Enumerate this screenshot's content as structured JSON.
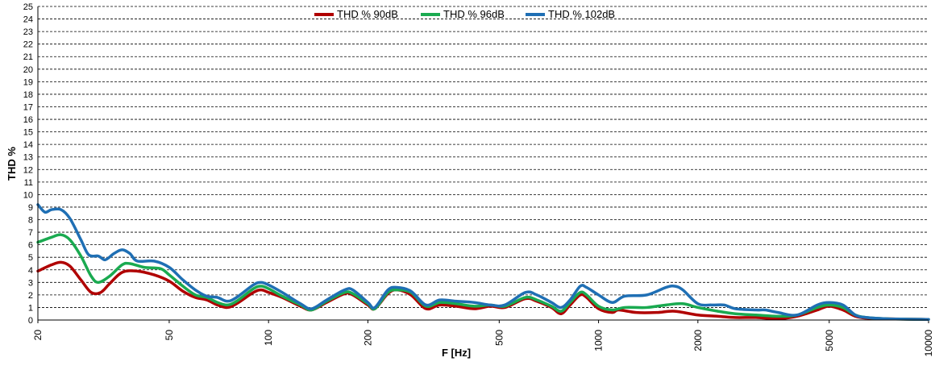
{
  "chart_data": {
    "type": "line",
    "title": "",
    "xlabel": "F [Hz]",
    "ylabel": "THD %",
    "x_scale": "log",
    "xlim": [
      20,
      10000
    ],
    "ylim": [
      0,
      25
    ],
    "y_ticks": [
      0,
      1,
      2,
      3,
      4,
      5,
      6,
      7,
      8,
      9,
      10,
      11,
      12,
      13,
      14,
      15,
      16,
      17,
      18,
      19,
      20,
      21,
      22,
      23,
      24,
      25
    ],
    "x_ticks": [
      20,
      50,
      100,
      200,
      500,
      1000,
      2000,
      5000,
      10000
    ],
    "x_tick_labels": [
      "20",
      "50",
      "100",
      "200",
      "500",
      "1000",
      "2000",
      "5000",
      "10000"
    ],
    "grid": "horizontal dashed",
    "legend_position": "top-center",
    "series": [
      {
        "name": "THD % 90dB",
        "color": "#b00000",
        "points": [
          [
            20,
            3.9
          ],
          [
            22,
            4.4
          ],
          [
            23.5,
            4.6
          ],
          [
            25,
            4.3
          ],
          [
            27,
            3.2
          ],
          [
            29,
            2.2
          ],
          [
            31,
            2.2
          ],
          [
            33,
            2.9
          ],
          [
            36,
            3.8
          ],
          [
            40,
            3.9
          ],
          [
            45,
            3.6
          ],
          [
            50,
            3.1
          ],
          [
            55,
            2.3
          ],
          [
            60,
            1.8
          ],
          [
            65,
            1.6
          ],
          [
            70,
            1.2
          ],
          [
            75,
            1.0
          ],
          [
            80,
            1.3
          ],
          [
            90,
            2.2
          ],
          [
            95,
            2.4
          ],
          [
            100,
            2.2
          ],
          [
            110,
            1.8
          ],
          [
            125,
            1.1
          ],
          [
            135,
            0.8
          ],
          [
            150,
            1.4
          ],
          [
            170,
            2.1
          ],
          [
            180,
            2.0
          ],
          [
            200,
            1.2
          ],
          [
            210,
            0.9
          ],
          [
            230,
            2.1
          ],
          [
            245,
            2.4
          ],
          [
            270,
            2.0
          ],
          [
            300,
            0.9
          ],
          [
            330,
            1.2
          ],
          [
            370,
            1.1
          ],
          [
            420,
            0.9
          ],
          [
            470,
            1.1
          ],
          [
            520,
            1.0
          ],
          [
            600,
            1.7
          ],
          [
            650,
            1.5
          ],
          [
            720,
            1.0
          ],
          [
            770,
            0.5
          ],
          [
            820,
            1.2
          ],
          [
            880,
            2.0
          ],
          [
            920,
            1.8
          ],
          [
            1000,
            0.9
          ],
          [
            1100,
            0.6
          ],
          [
            1150,
            0.8
          ],
          [
            1300,
            0.6
          ],
          [
            1500,
            0.6
          ],
          [
            1700,
            0.7
          ],
          [
            2000,
            0.4
          ],
          [
            2300,
            0.3
          ],
          [
            2600,
            0.2
          ],
          [
            3000,
            0.2
          ],
          [
            3500,
            0.1
          ],
          [
            4000,
            0.3
          ],
          [
            4600,
            0.8
          ],
          [
            5000,
            1.1
          ],
          [
            5500,
            0.8
          ],
          [
            6000,
            0.3
          ],
          [
            6500,
            0.15
          ],
          [
            7500,
            0.1
          ],
          [
            10000,
            0.05
          ]
        ]
      },
      {
        "name": "THD % 96dB",
        "color": "#1aaa50",
        "points": [
          [
            20,
            6.2
          ],
          [
            22,
            6.6
          ],
          [
            23.5,
            6.8
          ],
          [
            25,
            6.4
          ],
          [
            27,
            5.1
          ],
          [
            29,
            3.5
          ],
          [
            30.5,
            3.0
          ],
          [
            33,
            3.5
          ],
          [
            36,
            4.4
          ],
          [
            38,
            4.5
          ],
          [
            42,
            4.2
          ],
          [
            47,
            4.1
          ],
          [
            50,
            3.6
          ],
          [
            55,
            2.7
          ],
          [
            60,
            2.0
          ],
          [
            65,
            1.8
          ],
          [
            70,
            1.4
          ],
          [
            75,
            1.2
          ],
          [
            80,
            1.5
          ],
          [
            90,
            2.5
          ],
          [
            95,
            2.7
          ],
          [
            100,
            2.5
          ],
          [
            110,
            1.9
          ],
          [
            125,
            1.2
          ],
          [
            135,
            0.8
          ],
          [
            150,
            1.5
          ],
          [
            170,
            2.2
          ],
          [
            180,
            2.1
          ],
          [
            200,
            1.3
          ],
          [
            210,
            0.9
          ],
          [
            230,
            2.2
          ],
          [
            245,
            2.4
          ],
          [
            270,
            2.2
          ],
          [
            300,
            1.1
          ],
          [
            330,
            1.4
          ],
          [
            370,
            1.3
          ],
          [
            420,
            1.1
          ],
          [
            470,
            1.2
          ],
          [
            520,
            1.1
          ],
          [
            600,
            1.8
          ],
          [
            650,
            1.6
          ],
          [
            720,
            1.1
          ],
          [
            770,
            0.7
          ],
          [
            820,
            1.4
          ],
          [
            880,
            2.2
          ],
          [
            920,
            2.0
          ],
          [
            1000,
            1.1
          ],
          [
            1100,
            0.8
          ],
          [
            1200,
            1.0
          ],
          [
            1400,
            1.0
          ],
          [
            1600,
            1.2
          ],
          [
            1800,
            1.3
          ],
          [
            2000,
            1.0
          ],
          [
            2300,
            0.7
          ],
          [
            2600,
            0.5
          ],
          [
            3000,
            0.4
          ],
          [
            3500,
            0.3
          ],
          [
            4000,
            0.4
          ],
          [
            4600,
            1.0
          ],
          [
            5000,
            1.2
          ],
          [
            5500,
            1.0
          ],
          [
            6000,
            0.4
          ],
          [
            6500,
            0.2
          ],
          [
            7500,
            0.1
          ],
          [
            10000,
            0.05
          ]
        ]
      },
      {
        "name": "THD % 102dB",
        "color": "#1f6fb4",
        "points": [
          [
            20,
            9.2
          ],
          [
            21,
            8.6
          ],
          [
            22,
            8.8
          ],
          [
            23.5,
            8.8
          ],
          [
            25,
            8.1
          ],
          [
            27,
            6.4
          ],
          [
            28.5,
            5.2
          ],
          [
            30.5,
            5.1
          ],
          [
            32,
            4.8
          ],
          [
            34,
            5.3
          ],
          [
            36,
            5.6
          ],
          [
            38,
            5.3
          ],
          [
            40,
            4.7
          ],
          [
            45,
            4.7
          ],
          [
            50,
            4.2
          ],
          [
            55,
            3.2
          ],
          [
            60,
            2.4
          ],
          [
            65,
            1.9
          ],
          [
            70,
            1.8
          ],
          [
            75,
            1.5
          ],
          [
            80,
            1.8
          ],
          [
            90,
            2.8
          ],
          [
            95,
            3.0
          ],
          [
            100,
            2.8
          ],
          [
            110,
            2.2
          ],
          [
            125,
            1.3
          ],
          [
            135,
            0.9
          ],
          [
            150,
            1.6
          ],
          [
            170,
            2.4
          ],
          [
            180,
            2.4
          ],
          [
            200,
            1.4
          ],
          [
            210,
            1.0
          ],
          [
            230,
            2.4
          ],
          [
            245,
            2.6
          ],
          [
            270,
            2.3
          ],
          [
            300,
            1.2
          ],
          [
            330,
            1.6
          ],
          [
            370,
            1.5
          ],
          [
            420,
            1.4
          ],
          [
            470,
            1.2
          ],
          [
            520,
            1.2
          ],
          [
            600,
            2.2
          ],
          [
            650,
            2.0
          ],
          [
            720,
            1.4
          ],
          [
            770,
            1.0
          ],
          [
            820,
            1.6
          ],
          [
            880,
            2.7
          ],
          [
            920,
            2.6
          ],
          [
            1000,
            2.0
          ],
          [
            1100,
            1.4
          ],
          [
            1200,
            1.9
          ],
          [
            1400,
            2.0
          ],
          [
            1600,
            2.6
          ],
          [
            1700,
            2.7
          ],
          [
            1800,
            2.4
          ],
          [
            2000,
            1.3
          ],
          [
            2200,
            1.2
          ],
          [
            2400,
            1.2
          ],
          [
            2600,
            0.9
          ],
          [
            3000,
            0.8
          ],
          [
            3200,
            0.8
          ],
          [
            3500,
            0.6
          ],
          [
            4000,
            0.4
          ],
          [
            4600,
            1.2
          ],
          [
            5000,
            1.4
          ],
          [
            5500,
            1.2
          ],
          [
            6000,
            0.4
          ],
          [
            6500,
            0.2
          ],
          [
            7500,
            0.1
          ],
          [
            10000,
            0.05
          ]
        ]
      }
    ]
  }
}
